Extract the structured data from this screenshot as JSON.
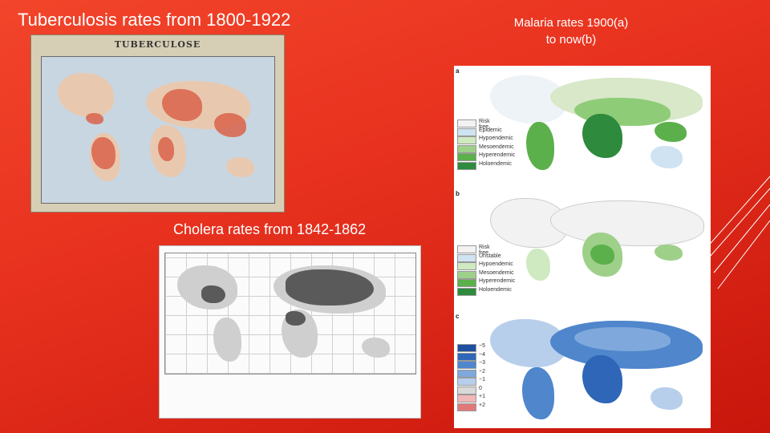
{
  "tb": {
    "title": "Tuberculosis rates from 1800-1922",
    "map_heading": "TUBERCULOSE"
  },
  "cholera": {
    "title": "Cholera rates from 1842-1862"
  },
  "malaria": {
    "title_line1": "Malaria rates 1900(a)",
    "title_line2": "to now(b)",
    "panel_a": {
      "letter": "a",
      "legend": [
        {
          "label": "Risk free",
          "color": "#f2f2f2"
        },
        {
          "label": "Epidemic",
          "color": "#cfe3f2"
        },
        {
          "label": "Hypoendemic",
          "color": "#cfe9c0"
        },
        {
          "label": "Mesoendemic",
          "color": "#9ed08a"
        },
        {
          "label": "Hyperendemic",
          "color": "#5bb04b"
        },
        {
          "label": "Holoendemic",
          "color": "#2e8a3c"
        }
      ]
    },
    "panel_b": {
      "letter": "b",
      "legend": [
        {
          "label": "Risk free",
          "color": "#f2f2f2"
        },
        {
          "label": "Unstable",
          "color": "#cfe3f2"
        },
        {
          "label": "Hypoendemic",
          "color": "#cfe9c0"
        },
        {
          "label": "Mesoendemic",
          "color": "#9ed08a"
        },
        {
          "label": "Hyperendemic",
          "color": "#5bb04b"
        },
        {
          "label": "Holoendemic",
          "color": "#2e8a3c"
        }
      ]
    },
    "panel_c": {
      "letter": "c",
      "legend": [
        {
          "label": "−5",
          "color": "#1f4fa0"
        },
        {
          "label": "−4",
          "color": "#2f66b8"
        },
        {
          "label": "−3",
          "color": "#4f86cc"
        },
        {
          "label": "−2",
          "color": "#7fa9dc"
        },
        {
          "label": "−1",
          "color": "#b7cfeb"
        },
        {
          "label": "0",
          "color": "#d9d9d9"
        },
        {
          "label": "+1",
          "color": "#f2b8b8"
        },
        {
          "label": "+2",
          "color": "#e07a7a"
        }
      ]
    }
  },
  "colors": {
    "background": "#e8321f",
    "text": "#ffffff"
  }
}
